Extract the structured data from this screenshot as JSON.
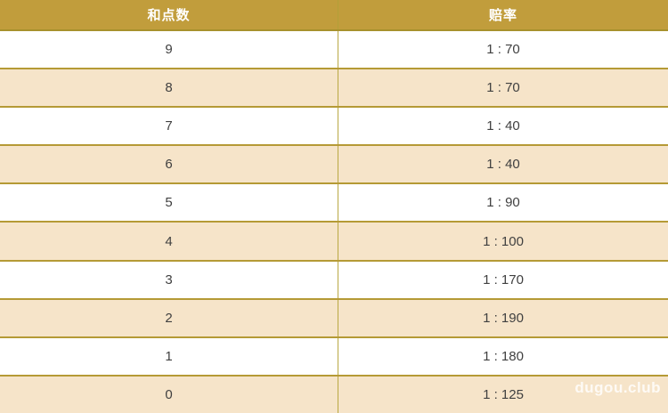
{
  "table": {
    "columns": [
      {
        "label": "和点数"
      },
      {
        "label": "赔率"
      }
    ],
    "rows": [
      {
        "points": "9",
        "odds": "1 : 70"
      },
      {
        "points": "8",
        "odds": "1 : 70"
      },
      {
        "points": "7",
        "odds": "1 : 40"
      },
      {
        "points": "6",
        "odds": "1 : 40"
      },
      {
        "points": "5",
        "odds": "1 : 90"
      },
      {
        "points": "4",
        "odds": "1 : 100"
      },
      {
        "points": "3",
        "odds": "1 : 170"
      },
      {
        "points": "2",
        "odds": "1 : 190"
      },
      {
        "points": "1",
        "odds": "1 : 180"
      },
      {
        "points": "0",
        "odds": "1 : 125"
      }
    ]
  },
  "watermark": "dugou.club",
  "colors": {
    "header_bg": "#c19d3c",
    "header_text": "#ffffff",
    "row_alt_bg": "#f6e4c9",
    "row_bg": "#ffffff",
    "border_horizontal": "#b59a35",
    "border_vertical": "#b9a843",
    "cell_text": "#404040"
  }
}
